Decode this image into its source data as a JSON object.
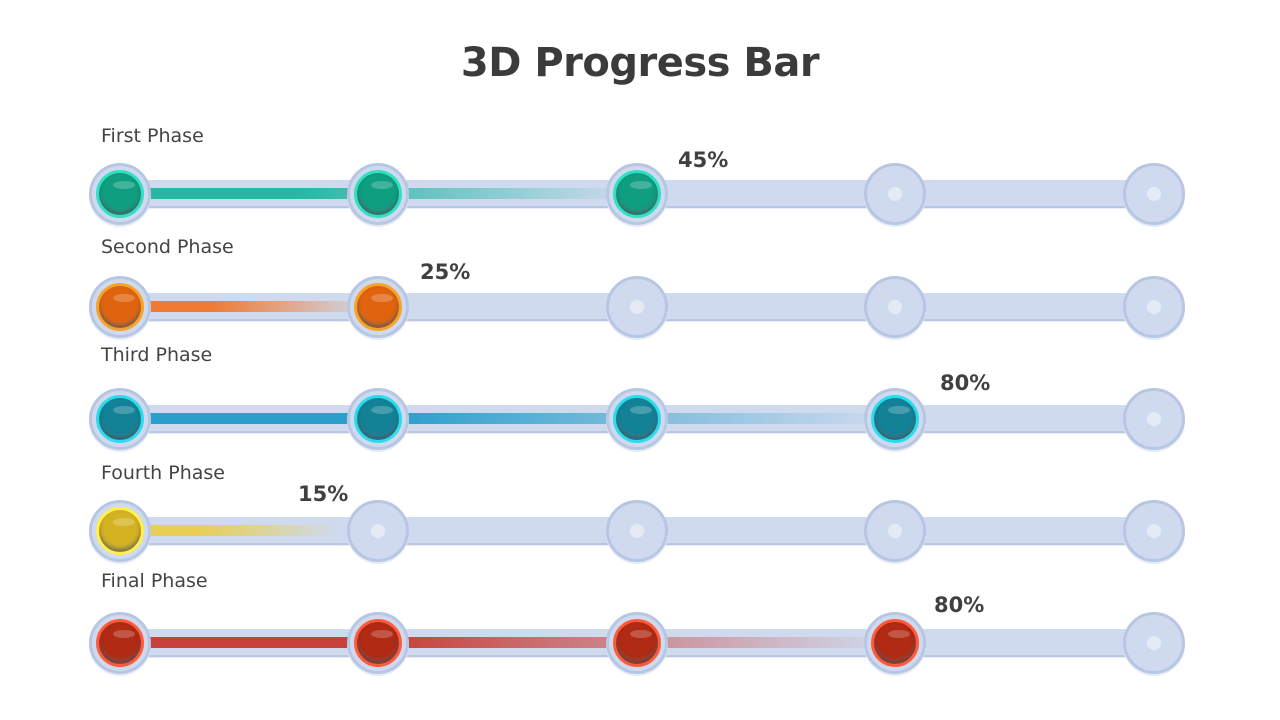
{
  "title": "3D Progress Bar",
  "phases": [
    {
      "label": "First Phase",
      "percent_label": "45%",
      "progress": 0.45,
      "filled_nodes": 3,
      "color": "#0f9e80",
      "ring": "#2fe0c4",
      "bar": "#27b8a4"
    },
    {
      "label": "Second Phase",
      "percent_label": "25%",
      "progress": 0.25,
      "filled_nodes": 2,
      "color": "#e0640f",
      "ring": "#f7a32a",
      "bar": "#ef7a33"
    },
    {
      "label": "Third Phase",
      "percent_label": "80%",
      "progress": 0.8,
      "filled_nodes": 4,
      "color": "#138296",
      "ring": "#2adcef",
      "bar": "#2a9fcb"
    },
    {
      "label": "Fourth Phase",
      "percent_label": "15%",
      "progress": 0.15,
      "filled_nodes": 1,
      "color": "#d4b322",
      "ring": "#fff04a",
      "bar": "#e8cf54"
    },
    {
      "label": "Final Phase",
      "percent_label": "80%",
      "progress": 0.8,
      "filled_nodes": 4,
      "color": "#b02a14",
      "ring": "#ff5a3a",
      "bar": "#c8413a"
    }
  ],
  "track_color": "#cfdaee"
}
